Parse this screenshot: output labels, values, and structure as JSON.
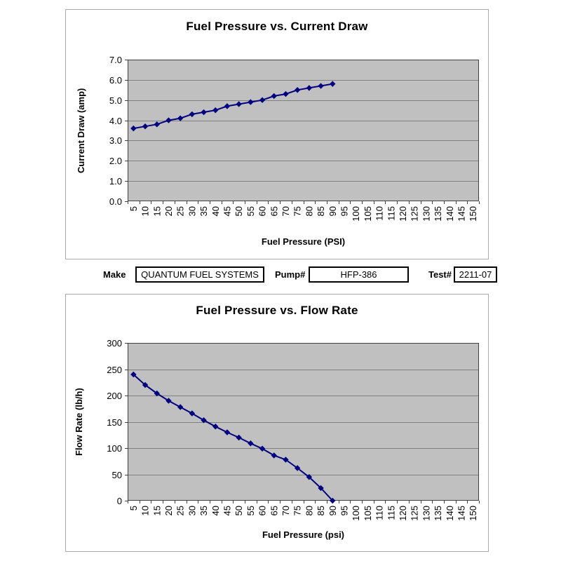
{
  "info_bar": {
    "make_label": "Make",
    "make_value": "QUANTUM FUEL SYSTEMS",
    "pump_label": "Pump#",
    "pump_value": "HFP-386",
    "test_label": "Test#",
    "test_value": "2211-07"
  },
  "colors": {
    "page_bg": "#ffffff",
    "plot_bg": "#c0c0c0",
    "gridline": "#808080",
    "plot_border": "#404040",
    "series_line": "#000080",
    "marker_fill": "#000080",
    "chart_box_border": "#a9a9a9",
    "field_border": "#000000",
    "text": "#000000"
  },
  "chart_data": [
    {
      "type": "line",
      "title": "Fuel Pressure vs. Current Draw",
      "xlabel": "Fuel Pressure (PSI)",
      "ylabel": "Current Draw (amp)",
      "x": [
        5,
        10,
        15,
        20,
        25,
        30,
        35,
        40,
        45,
        50,
        55,
        60,
        65,
        70,
        75,
        80,
        85,
        90
      ],
      "values": [
        3.6,
        3.7,
        3.8,
        4.0,
        4.1,
        4.3,
        4.4,
        4.5,
        4.7,
        4.8,
        4.9,
        5.0,
        5.2,
        5.3,
        5.5,
        5.6,
        5.7,
        5.8
      ],
      "x_ticks": [
        5,
        10,
        15,
        20,
        25,
        30,
        35,
        40,
        45,
        50,
        55,
        60,
        65,
        70,
        75,
        80,
        85,
        90,
        95,
        100,
        105,
        110,
        115,
        120,
        125,
        130,
        135,
        140,
        145,
        150
      ],
      "ylim": [
        0,
        7
      ],
      "y_tick_step": 1,
      "y_tick_decimals": 1,
      "grid": true,
      "legend": "none",
      "marker": "diamond"
    },
    {
      "type": "line",
      "title": "Fuel Pressure vs. Flow Rate",
      "xlabel": "Fuel Pressure (psi)",
      "ylabel": "Flow Rate (lb/h)",
      "x": [
        5,
        10,
        15,
        20,
        25,
        30,
        35,
        40,
        45,
        50,
        55,
        60,
        65,
        70,
        75,
        80,
        85,
        90
      ],
      "values": [
        240,
        220,
        204,
        190,
        178,
        166,
        153,
        141,
        130,
        120,
        109,
        99,
        86,
        78,
        62,
        45,
        24,
        0
      ],
      "x_ticks": [
        5,
        10,
        15,
        20,
        25,
        30,
        35,
        40,
        45,
        50,
        55,
        60,
        65,
        70,
        75,
        80,
        85,
        90,
        95,
        100,
        105,
        110,
        115,
        120,
        125,
        130,
        135,
        140,
        145,
        150
      ],
      "ylim": [
        0,
        300
      ],
      "y_tick_step": 50,
      "y_tick_decimals": 0,
      "grid": true,
      "legend": "none",
      "marker": "diamond"
    }
  ]
}
